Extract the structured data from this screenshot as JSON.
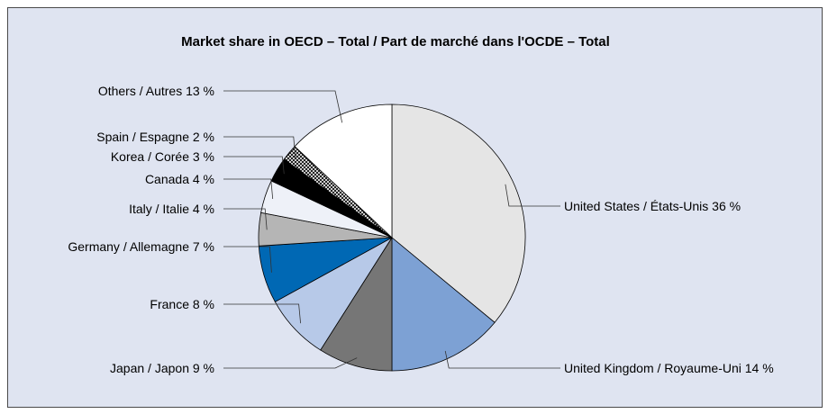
{
  "chart_data": {
    "type": "pie",
    "title": "Market share in OECD – Total / Part de marché dans l'OCDE – Total",
    "slices": [
      {
        "label": "United States / États-Unis 36 %",
        "value": 36,
        "color": "#e5e5e5"
      },
      {
        "label": "United Kingdom / Royaume-Uni 14 %",
        "value": 14,
        "color": "#7da1d4"
      },
      {
        "label": "Japan / Japon 9 %",
        "value": 9,
        "color": "#767676"
      },
      {
        "label": "France 8 %",
        "value": 8,
        "color": "#b7c9e8"
      },
      {
        "label": "Germany / Allemagne 7 %",
        "value": 7,
        "color": "#0068b4"
      },
      {
        "label": "Italy / Italie 4 %",
        "value": 4,
        "color": "#b5b5b5"
      },
      {
        "label": "Canada 4 %",
        "value": 4,
        "color": "#eef1f8"
      },
      {
        "label": "Korea / Corée 3 %",
        "value": 3,
        "color": "#000000"
      },
      {
        "label": "Spain / Espagne 2 %",
        "value": 2,
        "color": "pattern"
      },
      {
        "label": "Others / Autres 13 %",
        "value": 13,
        "color": "#ffffff"
      }
    ]
  }
}
